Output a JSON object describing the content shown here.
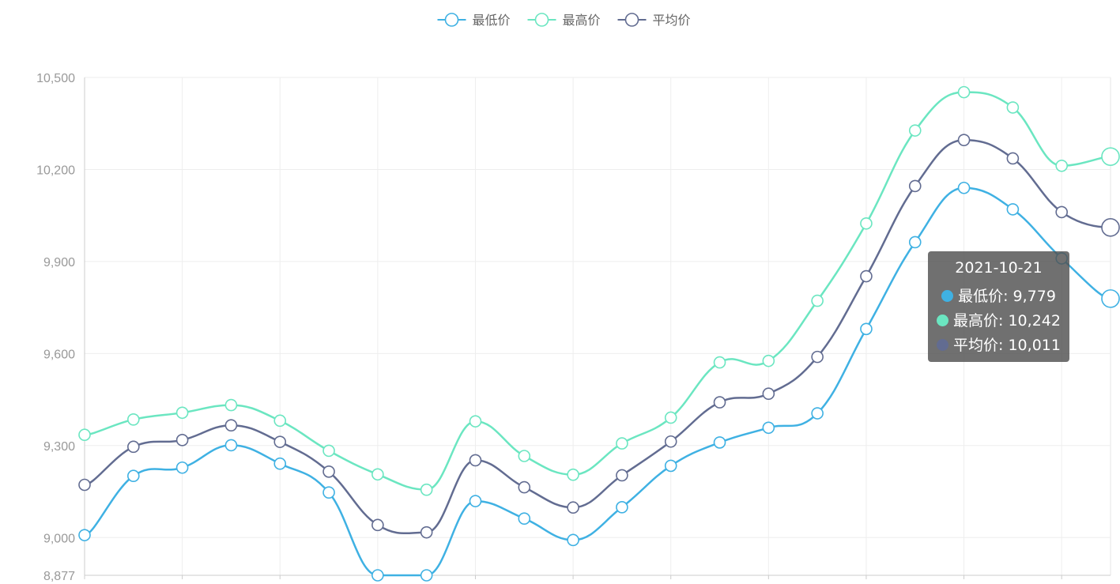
{
  "chart_data": {
    "type": "line",
    "smooth": true,
    "x": [
      "",
      "",
      "",
      "",
      "",
      "",
      "",
      "",
      "",
      "",
      "",
      "",
      "",
      "",
      "",
      "",
      "",
      "",
      "",
      "",
      "",
      "2021-10-21"
    ],
    "series": [
      {
        "name": "最低价",
        "color": "#3fb1e3",
        "values": [
          9008,
          9201,
          9228,
          9301,
          9241,
          9147,
          8877,
          8877,
          9119,
          9062,
          8992,
          9099,
          9234,
          9310,
          9358,
          9405,
          9680,
          9963,
          10140,
          10070,
          9910,
          9779
        ]
      },
      {
        "name": "最高价",
        "color": "#6be6c1",
        "values": [
          9335,
          9385,
          9407,
          9432,
          9381,
          9283,
          9206,
          9156,
          9379,
          9266,
          9205,
          9307,
          9391,
          9571,
          9576,
          9772,
          10024,
          10327,
          10452,
          10402,
          10212,
          10242
        ]
      },
      {
        "name": "平均价",
        "color": "#626c91",
        "values": [
          9172,
          9296,
          9318,
          9366,
          9312,
          9215,
          9041,
          9017,
          9252,
          9164,
          9098,
          9203,
          9313,
          9441,
          9469,
          9589,
          9852,
          10146,
          10296,
          10236,
          10061,
          10011
        ]
      }
    ],
    "y_ticks": [
      "10,500",
      "10,200",
      "9,900",
      "9,600",
      "9,300",
      "9,000",
      "8,877"
    ],
    "ylim": [
      8877,
      10500
    ],
    "grid": true,
    "legend_position": "top-center",
    "highlighted_index": 21
  },
  "legend": [
    {
      "label": "最低价",
      "color": "#3fb1e3"
    },
    {
      "label": "最高价",
      "color": "#6be6c1"
    },
    {
      "label": "平均价",
      "color": "#626c91"
    }
  ],
  "tooltip": {
    "date": "2021-10-21",
    "rows": [
      {
        "text": "最低价: 9,779",
        "color": "#3fb1e3"
      },
      {
        "text": "最高价: 10,242",
        "color": "#6be6c1"
      },
      {
        "text": "平均价: 10,011",
        "color": "#626c91"
      }
    ]
  }
}
